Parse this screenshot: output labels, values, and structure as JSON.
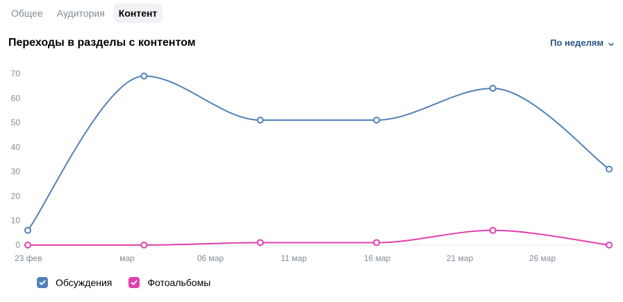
{
  "tabs": [
    {
      "label": "Общее",
      "active": false
    },
    {
      "label": "Аудитория",
      "active": false
    },
    {
      "label": "Контент",
      "active": true
    }
  ],
  "section_title": "Переходы в разделы с контентом",
  "period_selector": {
    "label": "По неделям",
    "icon": "chevron-down-icon"
  },
  "colors": {
    "series_discussions": "#5181b8",
    "series_photoalbums": "#e03fad",
    "axis_text": "#818c99",
    "accent": "#2a5885"
  },
  "chart_data": {
    "type": "line",
    "title": "",
    "xlabel": "",
    "ylabel": "",
    "ylim": [
      0,
      70
    ],
    "yticks": [
      0,
      10,
      20,
      30,
      40,
      50,
      60,
      70
    ],
    "xticks": [
      "23 фев",
      "мар",
      "06 мар",
      "11 мар",
      "16 мар",
      "21 мар",
      "26 мар"
    ],
    "x": [
      "23 фев",
      "02 мар",
      "09 мар",
      "16 мар",
      "23 мар",
      "30 мар"
    ],
    "series": [
      {
        "name": "Обсуждения",
        "values": [
          6,
          69,
          51,
          51,
          64,
          31
        ]
      },
      {
        "name": "Фотоальбомы",
        "values": [
          0,
          0,
          1,
          1,
          6,
          0
        ]
      }
    ],
    "grid": false,
    "legend": "bottom-left",
    "smooth": true
  }
}
